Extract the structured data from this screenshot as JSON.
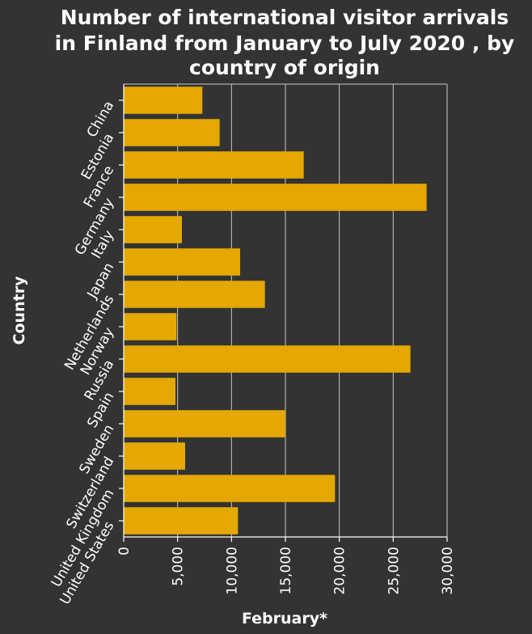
{
  "chart_data": {
    "type": "bar",
    "orientation": "horizontal",
    "title_lines": [
      "Number of international visitor arrivals",
      "in Finland from January to July 2020 , by",
      "country of origin"
    ],
    "xlabel": "February*",
    "ylabel": "Country",
    "categories": [
      "China",
      "Estonia",
      "France",
      "Germany",
      "Italy",
      "Japan",
      "Netherlands",
      "Norway",
      "Russia",
      "Spain",
      "Sweden",
      "Switzerland",
      "United Kingdom",
      "United States"
    ],
    "values": [
      7300,
      8900,
      16700,
      28100,
      5400,
      10800,
      13100,
      4900,
      26600,
      4800,
      15000,
      5700,
      19600,
      10600
    ],
    "xlim": [
      0,
      30000
    ],
    "xticks": [
      0,
      5000,
      10000,
      15000,
      20000,
      25000,
      30000
    ],
    "xtick_labels": [
      "0",
      "5,000",
      "10,000",
      "15,000",
      "20,000",
      "25,000",
      "30,000"
    ],
    "grid": "vertical",
    "bar_color": "#e5a800",
    "background_color": "#333333"
  }
}
